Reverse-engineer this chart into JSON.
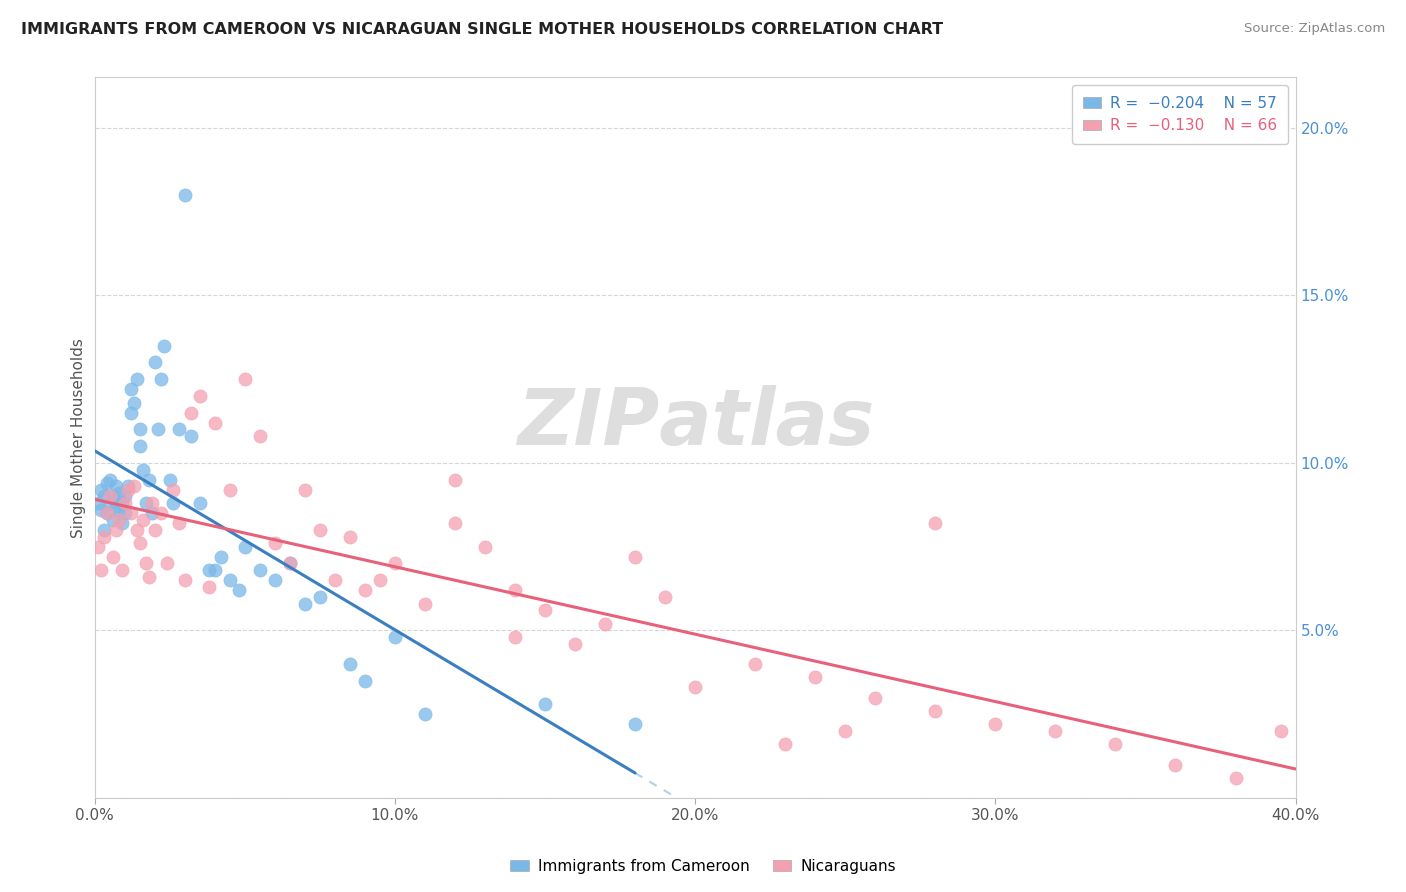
{
  "title": "IMMIGRANTS FROM CAMEROON VS NICARAGUAN SINGLE MOTHER HOUSEHOLDS CORRELATION CHART",
  "source": "Source: ZipAtlas.com",
  "ylabel": "Single Mother Households",
  "xlim": [
    0.0,
    0.4
  ],
  "ylim": [
    0.0,
    0.215
  ],
  "xticks": [
    0.0,
    0.1,
    0.2,
    0.3,
    0.4
  ],
  "xticklabels": [
    "0.0%",
    "10.0%",
    "20.0%",
    "30.0%",
    "40.0%"
  ],
  "yticks": [
    0.0,
    0.05,
    0.1,
    0.15,
    0.2
  ],
  "yticklabels_right": [
    "",
    "5.0%",
    "10.0%",
    "15.0%",
    "20.0%"
  ],
  "color_blue": "#7ab8e8",
  "color_pink": "#f4a0b0",
  "color_blue_line": "#3a7fc1",
  "color_pink_line": "#e8607a",
  "color_blue_dashed": "#8ab8d8",
  "watermark_text": "ZIPAtlas",
  "blue_x": [
    0.001,
    0.002,
    0.002,
    0.003,
    0.003,
    0.004,
    0.004,
    0.005,
    0.005,
    0.006,
    0.006,
    0.007,
    0.007,
    0.008,
    0.008,
    0.009,
    0.009,
    0.01,
    0.01,
    0.011,
    0.012,
    0.012,
    0.013,
    0.014,
    0.015,
    0.015,
    0.016,
    0.017,
    0.018,
    0.019,
    0.02,
    0.021,
    0.022,
    0.023,
    0.025,
    0.026,
    0.028,
    0.03,
    0.032,
    0.035,
    0.038,
    0.04,
    0.042,
    0.045,
    0.048,
    0.05,
    0.055,
    0.06,
    0.065,
    0.07,
    0.075,
    0.085,
    0.09,
    0.1,
    0.11,
    0.15,
    0.18
  ],
  "blue_y": [
    0.088,
    0.092,
    0.086,
    0.08,
    0.09,
    0.085,
    0.094,
    0.088,
    0.095,
    0.083,
    0.09,
    0.087,
    0.093,
    0.086,
    0.091,
    0.082,
    0.088,
    0.09,
    0.085,
    0.093,
    0.115,
    0.122,
    0.118,
    0.125,
    0.11,
    0.105,
    0.098,
    0.088,
    0.095,
    0.085,
    0.13,
    0.11,
    0.125,
    0.135,
    0.095,
    0.088,
    0.11,
    0.18,
    0.108,
    0.088,
    0.068,
    0.068,
    0.072,
    0.065,
    0.062,
    0.075,
    0.068,
    0.065,
    0.07,
    0.058,
    0.06,
    0.04,
    0.035,
    0.048,
    0.025,
    0.028,
    0.022
  ],
  "pink_x": [
    0.001,
    0.002,
    0.003,
    0.004,
    0.005,
    0.006,
    0.007,
    0.008,
    0.009,
    0.01,
    0.011,
    0.012,
    0.013,
    0.014,
    0.015,
    0.016,
    0.017,
    0.018,
    0.019,
    0.02,
    0.022,
    0.024,
    0.026,
    0.028,
    0.03,
    0.032,
    0.035,
    0.038,
    0.04,
    0.045,
    0.05,
    0.055,
    0.06,
    0.065,
    0.07,
    0.075,
    0.08,
    0.09,
    0.1,
    0.11,
    0.12,
    0.13,
    0.14,
    0.15,
    0.16,
    0.17,
    0.18,
    0.19,
    0.2,
    0.22,
    0.24,
    0.26,
    0.28,
    0.3,
    0.32,
    0.34,
    0.36,
    0.38,
    0.395,
    0.28,
    0.25,
    0.23,
    0.12,
    0.14,
    0.085,
    0.095
  ],
  "pink_y": [
    0.075,
    0.068,
    0.078,
    0.085,
    0.09,
    0.072,
    0.08,
    0.083,
    0.068,
    0.088,
    0.092,
    0.085,
    0.093,
    0.08,
    0.076,
    0.083,
    0.07,
    0.066,
    0.088,
    0.08,
    0.085,
    0.07,
    0.092,
    0.082,
    0.065,
    0.115,
    0.12,
    0.063,
    0.112,
    0.092,
    0.125,
    0.108,
    0.076,
    0.07,
    0.092,
    0.08,
    0.065,
    0.062,
    0.07,
    0.058,
    0.082,
    0.075,
    0.062,
    0.056,
    0.046,
    0.052,
    0.072,
    0.06,
    0.033,
    0.04,
    0.036,
    0.03,
    0.026,
    0.022,
    0.02,
    0.016,
    0.01,
    0.006,
    0.02,
    0.082,
    0.02,
    0.016,
    0.095,
    0.048,
    0.078,
    0.065
  ],
  "blue_line_xstart": 0.0,
  "blue_line_xend": 0.18,
  "blue_dash_xstart": 0.18,
  "blue_dash_xend": 0.4,
  "pink_line_xstart": 0.0,
  "pink_line_xend": 0.4,
  "legend_items": [
    {
      "label": "R =  −0.204    N = 57",
      "color": "#7ab8e8"
    },
    {
      "label": "R =  −0.130    N = 66",
      "color": "#f4a0b0"
    }
  ],
  "bottom_legend": [
    "Immigrants from Cameroon",
    "Nicaraguans"
  ]
}
